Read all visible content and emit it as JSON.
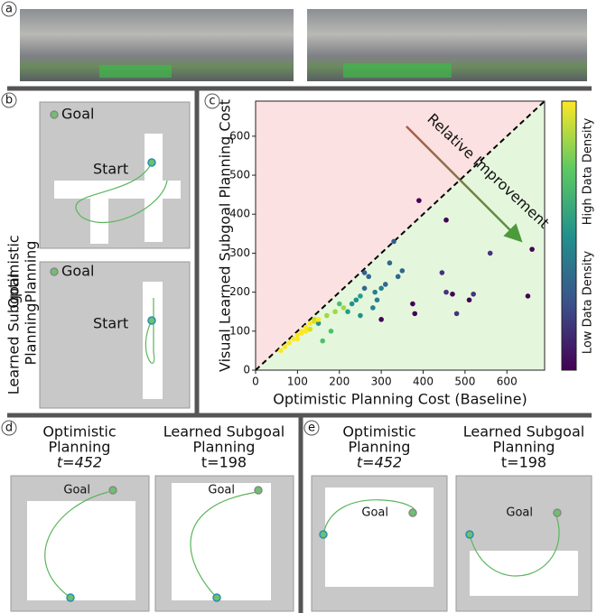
{
  "panels": {
    "a": {
      "label": "a"
    },
    "b": {
      "label": "b",
      "rows": [
        {
          "side_label": [
            "Optimistic",
            "Planning"
          ],
          "goal": "Goal",
          "start": "Start"
        },
        {
          "side_label": [
            "Learned Subgoal",
            "Planning"
          ],
          "goal": "Goal",
          "start": "Start"
        }
      ]
    },
    "c": {
      "label": "c"
    },
    "d": {
      "label": "d",
      "left": {
        "title": [
          "Optimistic",
          "Planning"
        ],
        "time": "t=452",
        "goal": "Goal"
      },
      "right": {
        "title": [
          "Learned Subgoal",
          "Planning"
        ],
        "time": "t=198",
        "goal": "Goal"
      }
    },
    "e": {
      "label": "e",
      "left": {
        "title": [
          "Optimistic",
          "Planning"
        ],
        "time": "t=452",
        "goal": "Goal"
      },
      "right": {
        "title": [
          "Learned Subgoal",
          "Planning"
        ],
        "time": "t=198",
        "goal": "Goal"
      }
    }
  },
  "chart_data": {
    "type": "scatter",
    "x_label": "Optimistic Planning Cost (Baseline)",
    "y_label": "Visual Learned Subgoal Planning Cost",
    "annotation": "Relative Improvement",
    "colorbar_high": "High Data Density",
    "colorbar_low": "Low Data Density",
    "xlim": [
      0,
      690
    ],
    "ylim": [
      0,
      690
    ],
    "xticks": [
      0,
      100,
      200,
      300,
      400,
      500,
      600
    ],
    "yticks": [
      0,
      100,
      200,
      300,
      400,
      500,
      600
    ],
    "x": [
      390,
      455,
      660,
      560,
      445,
      455,
      470,
      480,
      510,
      520,
      650,
      375,
      380,
      300,
      330,
      340,
      350,
      320,
      310,
      300,
      285,
      270,
      260,
      290,
      250,
      280,
      240,
      230,
      260,
      220,
      250,
      200,
      150,
      210,
      190,
      180,
      160,
      140,
      170,
      60,
      80,
      90,
      100,
      110,
      120,
      130,
      140,
      150,
      120,
      100,
      70,
      110,
      130
    ],
    "values": [
      435,
      385,
      310,
      300,
      250,
      200,
      195,
      145,
      180,
      195,
      190,
      170,
      145,
      130,
      330,
      240,
      255,
      275,
      220,
      210,
      200,
      240,
      250,
      180,
      190,
      160,
      180,
      170,
      210,
      150,
      140,
      170,
      120,
      160,
      150,
      100,
      75,
      130,
      140,
      50,
      70,
      80,
      90,
      100,
      110,
      120,
      125,
      130,
      100,
      80,
      60,
      95,
      105
    ],
    "colors": [
      "#440154",
      "#440154",
      "#440154",
      "#46327e",
      "#46327e",
      "#46327e",
      "#440154",
      "#46327e",
      "#440154",
      "#46327e",
      "#440154",
      "#440154",
      "#440154",
      "#440154",
      "#365c8d",
      "#31688e",
      "#31688e",
      "#31688e",
      "#31688e",
      "#277f8e",
      "#277f8e",
      "#31688e",
      "#365c8d",
      "#277f8e",
      "#1fa187",
      "#277f8e",
      "#21918c",
      "#21918c",
      "#31688e",
      "#1fa187",
      "#21918c",
      "#4ac16d",
      "#21918c",
      "#9fda3a",
      "#9fda3a",
      "#4ac16d",
      "#4ac16d",
      "#bddf26",
      "#9fda3a",
      "#fde725",
      "#fde725",
      "#fde725",
      "#fde725",
      "#fde725",
      "#fde725",
      "#fde725",
      "#d8e219",
      "#fde725",
      "#fde725",
      "#fde725",
      "#fde725",
      "#fde725",
      "#d8e219"
    ]
  }
}
